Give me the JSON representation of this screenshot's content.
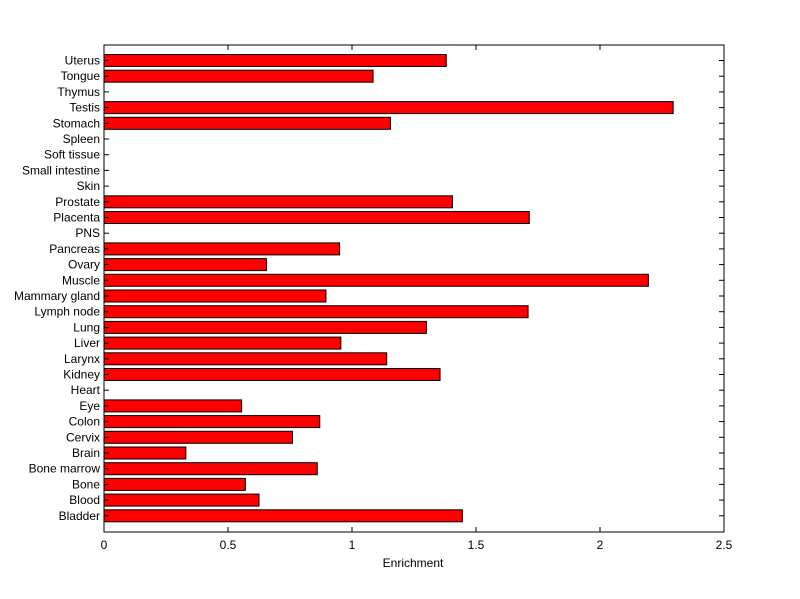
{
  "chart_data": {
    "type": "bar",
    "orientation": "horizontal",
    "categories": [
      "Uterus",
      "Tongue",
      "Thymus",
      "Testis",
      "Stomach",
      "Spleen",
      "Soft tissue",
      "Small intestine",
      "Skin",
      "Prostate",
      "Placenta",
      "PNS",
      "Pancreas",
      "Ovary",
      "Muscle",
      "Mammary gland",
      "Lymph node",
      "Lung",
      "Liver",
      "Larynx",
      "Kidney",
      "Heart",
      "Eye",
      "Colon",
      "Cervix",
      "Brain",
      "Bone marrow",
      "Bone",
      "Blood",
      "Bladder"
    ],
    "values": [
      1.38,
      1.085,
      0,
      2.295,
      1.155,
      0,
      0,
      0,
      0,
      1.405,
      1.715,
      0,
      0.95,
      0.655,
      2.195,
      0.895,
      1.71,
      1.3,
      0.955,
      1.14,
      1.355,
      0,
      0.555,
      0.87,
      0.76,
      0.33,
      0.86,
      0.57,
      0.625,
      1.445
    ],
    "xlabel": "Enrichment",
    "ylabel": "",
    "title": "",
    "xlim": [
      0,
      2.5
    ],
    "xticks": [
      "0",
      "0.5",
      "1",
      "1.5",
      "2",
      "2.5"
    ],
    "bar_color": "#ff0000",
    "grid": false,
    "legend": "none"
  }
}
